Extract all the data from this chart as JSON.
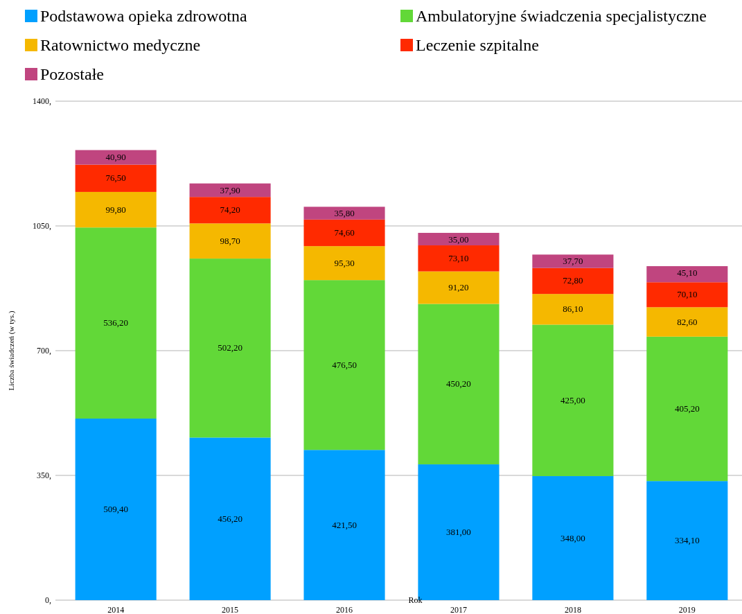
{
  "chart_data": {
    "type": "bar",
    "stacked": true,
    "xlabel": "Rok",
    "ylabel": "Liczba świadczeń (w tys.)",
    "categories": [
      "2014",
      "2015",
      "2016",
      "2017",
      "2018",
      "2019"
    ],
    "ylim": [
      0,
      1400
    ],
    "yticks": [
      {
        "value": 0,
        "label": "0,"
      },
      {
        "value": 350,
        "label": "350,"
      },
      {
        "value": 700,
        "label": "700,"
      },
      {
        "value": 1050,
        "label": "1050,"
      },
      {
        "value": 1400,
        "label": "1400,"
      }
    ],
    "grid": "y",
    "legend": "top",
    "series": [
      {
        "name": "Podstawowa opieka zdrowotna",
        "color": "#00a0ff",
        "values": [
          509.4,
          456.2,
          421.5,
          381.0,
          348.0,
          334.1
        ],
        "value_labels": [
          "509,40",
          "456,20",
          "421,50",
          "381,00",
          "348,00",
          "334,10"
        ]
      },
      {
        "name": "Ambulatoryjne świadczenia specjalistyczne",
        "color": "#62d838",
        "values": [
          536.2,
          502.2,
          476.5,
          450.2,
          425.0,
          405.2
        ],
        "value_labels": [
          "536,20",
          "502,20",
          "476,50",
          "450,20",
          "425,00",
          "405,20"
        ]
      },
      {
        "name": "Ratownictwo medyczne",
        "color": "#f5b800",
        "values": [
          99.8,
          98.7,
          95.3,
          91.2,
          86.1,
          82.6
        ],
        "value_labels": [
          "99,80",
          "98,70",
          "95,30",
          "91,20",
          "86,10",
          "82,60"
        ]
      },
      {
        "name": "Leczenie szpitalne",
        "color": "#ff2a00",
        "values": [
          76.5,
          74.2,
          74.6,
          73.1,
          72.8,
          70.1
        ],
        "value_labels": [
          "76,50",
          "74,20",
          "74,60",
          "73,10",
          "72,80",
          "70,10"
        ]
      },
      {
        "name": "Pozostałe",
        "color": "#c0457f",
        "values": [
          40.9,
          37.9,
          35.8,
          35.0,
          37.7,
          45.1
        ],
        "value_labels": [
          "40,90",
          "37,90",
          "35,80",
          "35,00",
          "37,70",
          "45,10"
        ]
      }
    ]
  }
}
